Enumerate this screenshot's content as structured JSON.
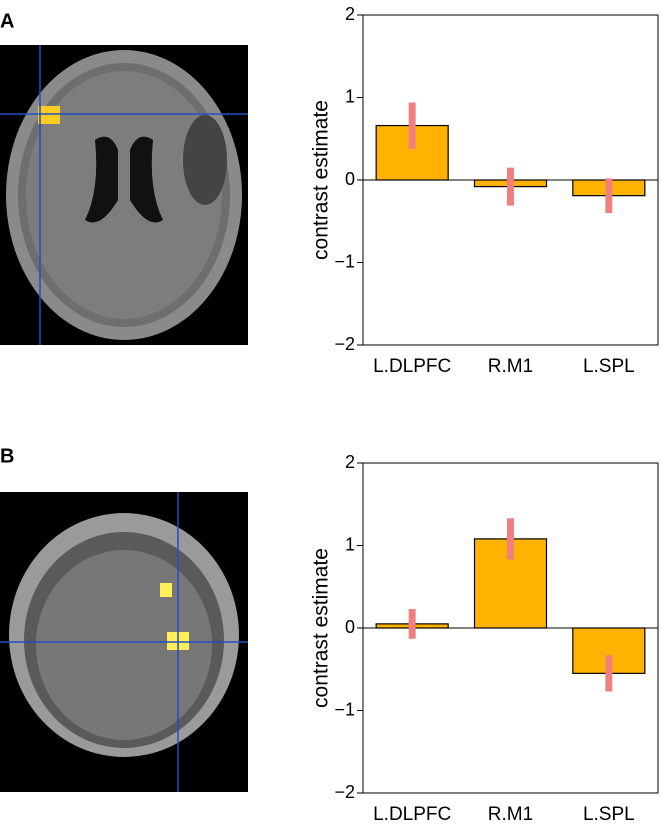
{
  "chart_data": [
    {
      "type": "bar",
      "panel_label": "A",
      "ylabel": "contrast estimate",
      "categories": [
        "L.DLPFC",
        "R.M1",
        "L.SPL"
      ],
      "values": [
        0.66,
        -0.08,
        -0.19
      ],
      "errors": [
        0.28,
        0.23,
        0.21
      ],
      "color": "#ffb300",
      "error_color": "#f08080",
      "ylim": [
        -2,
        2
      ],
      "yticks": [
        {
          "value": -2,
          "label": "−2"
        },
        {
          "value": -1,
          "label": "−1"
        },
        0,
        1,
        2
      ]
    },
    {
      "type": "bar",
      "panel_label": "B",
      "ylabel": "contrast estimate",
      "categories": [
        "L.DLPFC",
        "R.M1",
        "L.SPL"
      ],
      "values": [
        0.05,
        1.08,
        -0.55
      ],
      "errors": [
        0.18,
        0.25,
        0.22
      ],
      "color": "#ffb300",
      "error_color": "#f08080",
      "ylim": [
        -2,
        2
      ],
      "yticks": [
        {
          "value": -2,
          "label": "−2"
        },
        {
          "value": -1,
          "label": "−1"
        },
        0,
        1,
        2
      ]
    }
  ]
}
